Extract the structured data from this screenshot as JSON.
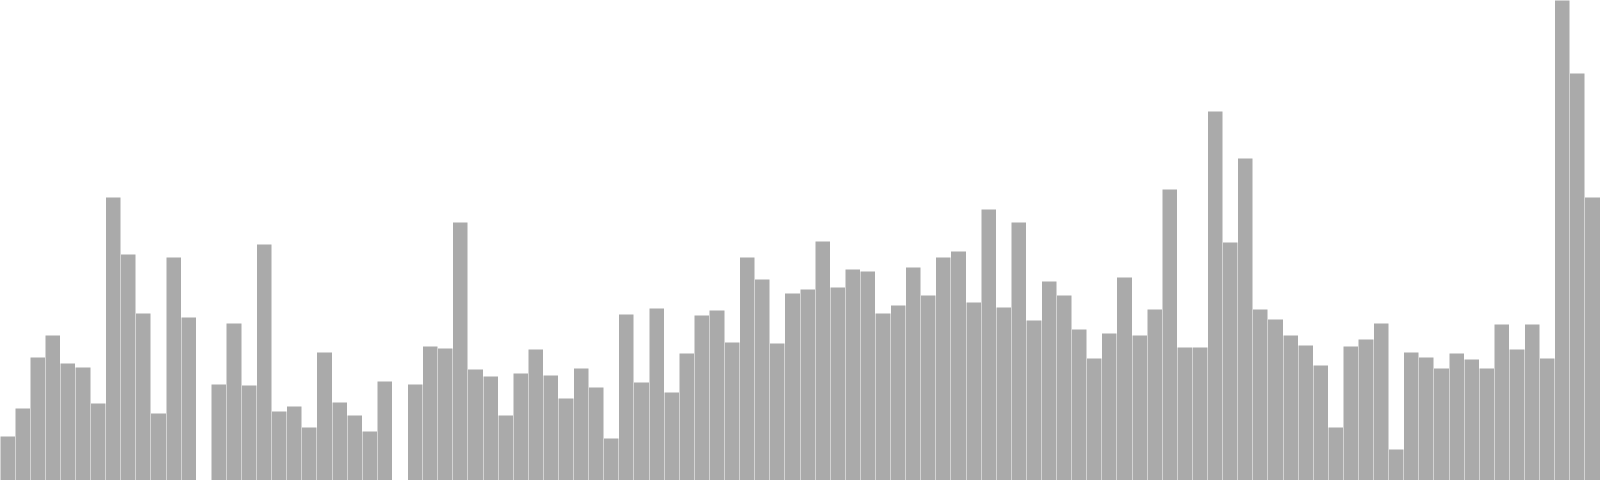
{
  "chart_data": {
    "type": "bar",
    "title": "",
    "xlabel": "",
    "ylabel": "",
    "ylim": [
      0,
      480
    ],
    "grid": false,
    "legend": "none",
    "axes_visible": false,
    "colors": {
      "bar": "#aaaaaa",
      "bar_edge": "#ffffff",
      "background": "#ffffff"
    },
    "values": [
      44,
      72,
      123,
      145,
      117,
      113,
      77,
      283,
      226,
      167,
      67,
      223,
      163,
      null,
      96,
      157,
      95,
      236,
      69,
      74,
      53,
      128,
      78,
      65,
      49,
      99,
      null,
      96,
      134,
      132,
      258,
      111,
      104,
      65,
      107,
      131,
      105,
      82,
      112,
      93,
      42,
      166,
      98,
      172,
      88,
      127,
      165,
      170,
      138,
      223,
      201,
      137,
      187,
      191,
      239,
      193,
      211,
      209,
      167,
      175,
      213,
      185,
      223,
      229,
      178,
      271,
      173,
      258,
      160,
      199,
      185,
      151,
      122,
      147,
      203,
      145,
      171,
      291,
      133,
      133,
      369,
      238,
      322,
      171,
      161,
      145,
      135,
      115,
      53,
      134,
      141,
      157,
      31,
      128,
      123,
      112,
      127,
      121,
      112,
      156,
      131,
      156,
      122,
      480,
      407,
      283
    ]
  }
}
